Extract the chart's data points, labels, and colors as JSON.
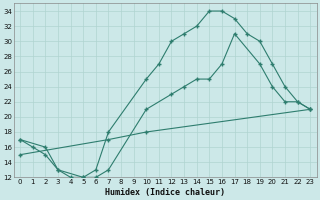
{
  "xlabel": "Humidex (Indice chaleur)",
  "xlim": [
    -0.5,
    23.5
  ],
  "ylim": [
    12,
    35
  ],
  "xticks": [
    0,
    1,
    2,
    3,
    4,
    5,
    6,
    7,
    8,
    9,
    10,
    11,
    12,
    13,
    14,
    15,
    16,
    17,
    18,
    19,
    20,
    21,
    22,
    23
  ],
  "yticks": [
    12,
    14,
    16,
    18,
    20,
    22,
    24,
    26,
    28,
    30,
    32,
    34
  ],
  "bg_color": "#cce8e8",
  "grid_color": "#b0d4d0",
  "line_color": "#2e7d6e",
  "curve1_x": [
    0,
    1,
    2,
    3,
    4,
    5,
    6,
    7,
    10,
    11,
    12,
    13,
    14,
    15,
    16,
    17,
    18,
    19,
    20,
    21,
    22,
    23
  ],
  "curve1_y": [
    17,
    16,
    15,
    13,
    12,
    12,
    13,
    18,
    25,
    27,
    30,
    31,
    32,
    34,
    34,
    33,
    31,
    30,
    27,
    24,
    22,
    21
  ],
  "curve2_x": [
    0,
    2,
    3,
    5,
    6,
    7,
    10,
    12,
    13,
    14,
    15,
    16,
    17,
    19,
    20,
    21,
    22,
    23
  ],
  "curve2_y": [
    17,
    16,
    13,
    12,
    12,
    13,
    21,
    23,
    24,
    25,
    25,
    27,
    31,
    27,
    24,
    22,
    22,
    21
  ],
  "curve3_x": [
    0,
    7,
    10,
    23
  ],
  "curve3_y": [
    15,
    17,
    18,
    21
  ]
}
